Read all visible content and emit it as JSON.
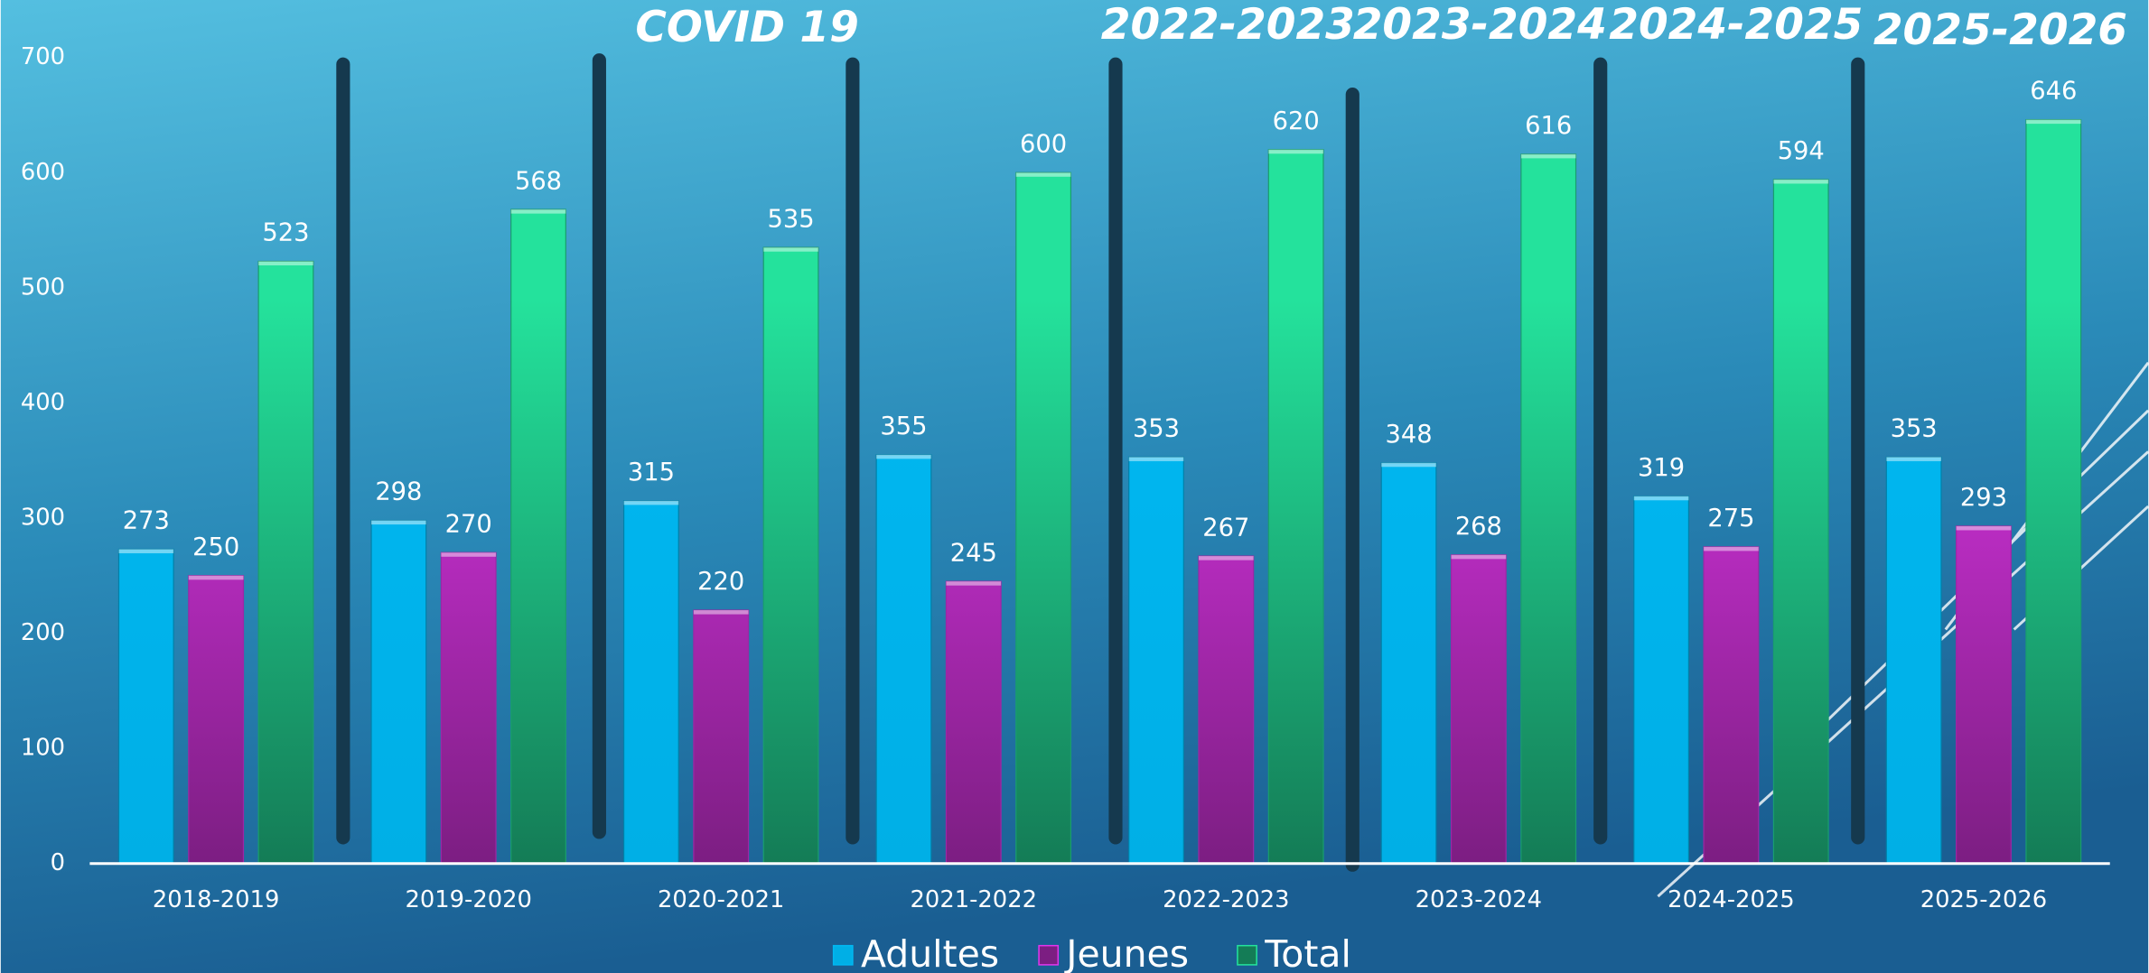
{
  "chart_data": {
    "type": "bar",
    "annotations": [
      "COVID 19",
      "2022-2023",
      "2023-2024",
      "2024-2025",
      "2025-2026"
    ],
    "categories": [
      "2018-2019",
      "2019-2020",
      "2020-2021",
      "2021-2022",
      "2022-2023",
      "2023-2024",
      "2024-2025",
      "2025-2026"
    ],
    "series": [
      {
        "name": "Adultes",
        "color": "#00b8f2",
        "values": [
          273,
          298,
          315,
          355,
          353,
          348,
          319,
          353
        ]
      },
      {
        "name": "Jeunes",
        "color": "#e236ec",
        "values": [
          250,
          270,
          220,
          245,
          267,
          268,
          275,
          293
        ]
      },
      {
        "name": "Total",
        "color": "#24e29c",
        "values": [
          523,
          568,
          535,
          600,
          620,
          616,
          594,
          646
        ]
      }
    ],
    "ylim": [
      0,
      700
    ],
    "yticks": [
      0,
      100,
      200,
      300,
      400,
      500,
      600,
      700
    ],
    "grid": false
  }
}
